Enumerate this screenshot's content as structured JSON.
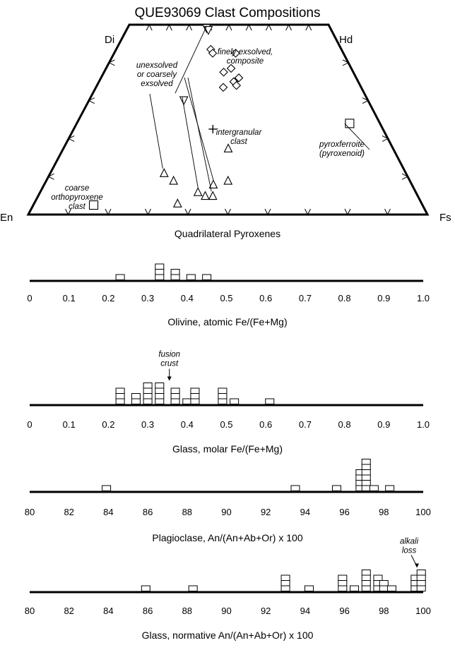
{
  "figure_title": "QUE93069 Clast Compositions",
  "chart_data": [
    {
      "type": "scatter",
      "title": "Quadrilateral Pyroxenes",
      "corners": {
        "top_left": "Di",
        "top_right": "Hd",
        "bottom_left": "En",
        "bottom_right": "Fs"
      },
      "x_ticks": [
        0.1,
        0.2,
        0.3,
        0.4,
        0.5,
        0.6,
        0.7,
        0.8,
        0.9
      ],
      "series": [
        {
          "marker": "triangle-down",
          "points": [
            [
              0.39,
              0.98
            ],
            [
              0.4,
              0.97
            ],
            [
              0.34,
              0.6
            ]
          ]
        },
        {
          "marker": "diamond",
          "points": [
            [
              0.42,
              0.87
            ],
            [
              0.43,
              0.85
            ],
            [
              0.48,
              0.75
            ],
            [
              0.51,
              0.77
            ],
            [
              0.53,
              0.85
            ],
            [
              0.48,
              0.67
            ],
            [
              0.54,
              0.72
            ],
            [
              0.52,
              0.7
            ],
            [
              0.53,
              0.68
            ]
          ]
        },
        {
          "marker": "triangle-up",
          "points": [
            [
              0.32,
              0.22
            ],
            [
              0.35,
              0.18
            ],
            [
              0.37,
              0.06
            ],
            [
              0.42,
              0.12
            ],
            [
              0.44,
              0.1
            ],
            [
              0.46,
              0.16
            ],
            [
              0.46,
              0.1
            ],
            [
              0.5,
              0.35
            ],
            [
              0.5,
              0.18
            ]
          ]
        },
        {
          "marker": "plus",
          "points": [
            [
              0.45,
              0.45
            ]
          ]
        },
        {
          "marker": "square",
          "points": [
            [
              0.155,
              0.05
            ],
            [
              0.9,
              0.48
            ]
          ]
        }
      ],
      "annotations": {
        "unexsolved": [
          "unexsolved",
          "or coarsely",
          "exsolved"
        ],
        "finely": [
          "finely exsolved,",
          "composite"
        ],
        "intergranular": [
          "intergranular",
          "clast"
        ],
        "pyroxferroite": [
          "pyroxferroite",
          "(pyroxenoid)"
        ],
        "coarse": [
          "coarse",
          "orthopyroxene",
          "clast"
        ]
      }
    },
    {
      "type": "histogram",
      "xlabel": "Olivine, atomic Fe/(Fe+Mg)",
      "xlim": [
        0,
        1
      ],
      "tick_labels": [
        "0",
        "0.1",
        "0.2",
        "0.3",
        "0.4",
        "0.5",
        "0.6",
        "0.7",
        "0.8",
        "0.9",
        "1.0"
      ],
      "bins": [
        {
          "x": 0.23,
          "count": 1
        },
        {
          "x": 0.33,
          "count": 3
        },
        {
          "x": 0.37,
          "count": 2
        },
        {
          "x": 0.41,
          "count": 1
        },
        {
          "x": 0.45,
          "count": 1
        }
      ]
    },
    {
      "type": "histogram",
      "xlabel": "Glass, molar Fe/(Fe+Mg)",
      "xlim": [
        0,
        1
      ],
      "tick_labels": [
        "0",
        "0.1",
        "0.2",
        "0.3",
        "0.4",
        "0.5",
        "0.6",
        "0.7",
        "0.8",
        "0.9",
        "1.0"
      ],
      "annotation": {
        "text": [
          "fusion",
          "crust"
        ],
        "x": 0.355
      },
      "bins": [
        {
          "x": 0.23,
          "count": 3
        },
        {
          "x": 0.27,
          "count": 2
        },
        {
          "x": 0.3,
          "count": 4
        },
        {
          "x": 0.33,
          "count": 4
        },
        {
          "x": 0.37,
          "count": 3
        },
        {
          "x": 0.4,
          "count": 1
        },
        {
          "x": 0.42,
          "count": 3
        },
        {
          "x": 0.49,
          "count": 3
        },
        {
          "x": 0.52,
          "count": 1
        },
        {
          "x": 0.61,
          "count": 1
        }
      ]
    },
    {
      "type": "histogram",
      "xlabel": "Plagioclase, An/(An+Ab+Or) x 100",
      "xlim": [
        80,
        100
      ],
      "tick_labels": [
        "80",
        "82",
        "84",
        "86",
        "88",
        "90",
        "92",
        "94",
        "96",
        "98",
        "100"
      ],
      "bins": [
        {
          "x": 83.9,
          "count": 1
        },
        {
          "x": 93.5,
          "count": 1
        },
        {
          "x": 95.6,
          "count": 1
        },
        {
          "x": 96.8,
          "count": 4
        },
        {
          "x": 97.1,
          "count": 6
        },
        {
          "x": 97.5,
          "count": 1
        },
        {
          "x": 98.3,
          "count": 1
        }
      ]
    },
    {
      "type": "histogram",
      "xlabel": "Glass, normative An/(An+Ab+Or) x 100",
      "xlim": [
        80,
        100
      ],
      "tick_labels": [
        "80",
        "82",
        "84",
        "86",
        "88",
        "90",
        "92",
        "94",
        "96",
        "98",
        "100"
      ],
      "annotation": {
        "text": [
          "alkali",
          "loss"
        ],
        "x": 99.5
      },
      "bins": [
        {
          "x": 85.9,
          "count": 1
        },
        {
          "x": 88.3,
          "count": 1
        },
        {
          "x": 93.0,
          "count": 3
        },
        {
          "x": 94.2,
          "count": 1
        },
        {
          "x": 95.9,
          "count": 3
        },
        {
          "x": 96.5,
          "count": 1
        },
        {
          "x": 97.1,
          "count": 4
        },
        {
          "x": 97.7,
          "count": 3
        },
        {
          "x": 98.0,
          "count": 2
        },
        {
          "x": 98.4,
          "count": 1
        },
        {
          "x": 99.6,
          "count": 3
        },
        {
          "x": 99.9,
          "count": 4
        }
      ]
    }
  ]
}
